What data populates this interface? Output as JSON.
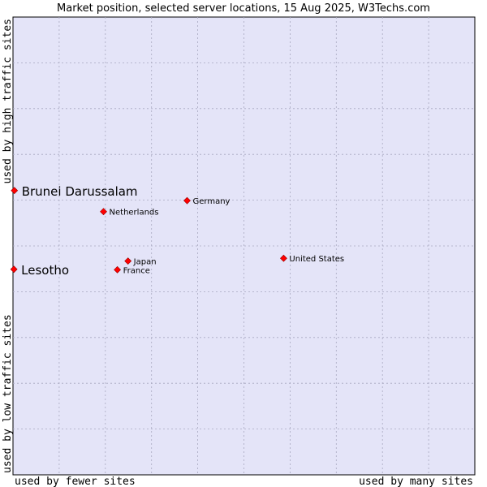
{
  "chart_data": {
    "type": "scatter",
    "title": "Market position, selected server locations, 15 Aug 2025, W3Techs.com",
    "x_axis": {
      "label_left": "used by fewer sites",
      "label_right": "used by many sites",
      "range": [
        0,
        100
      ]
    },
    "y_axis": {
      "label_bottom": "used by low traffic sites",
      "label_top": "used by high traffic sites",
      "range": [
        0,
        100
      ]
    },
    "grid": true,
    "colors": {
      "plot_background": "#e4e4f8",
      "grid": "#a8a8c0",
      "point": "#ff0000",
      "point_stroke": "#990000"
    },
    "points": [
      {
        "name": "Brunei Darussalam",
        "x": 0.3,
        "y": 62.1,
        "highlight": true
      },
      {
        "name": "Lesotho",
        "x": 0.2,
        "y": 44.9,
        "highlight": true
      },
      {
        "name": "Germany",
        "x": 37.7,
        "y": 59.9,
        "highlight": false
      },
      {
        "name": "Netherlands",
        "x": 19.6,
        "y": 57.5,
        "highlight": false
      },
      {
        "name": "United States",
        "x": 58.6,
        "y": 47.3,
        "highlight": false
      },
      {
        "name": "Japan",
        "x": 24.9,
        "y": 46.7,
        "highlight": false
      },
      {
        "name": "France",
        "x": 22.6,
        "y": 44.8,
        "highlight": false
      }
    ]
  }
}
